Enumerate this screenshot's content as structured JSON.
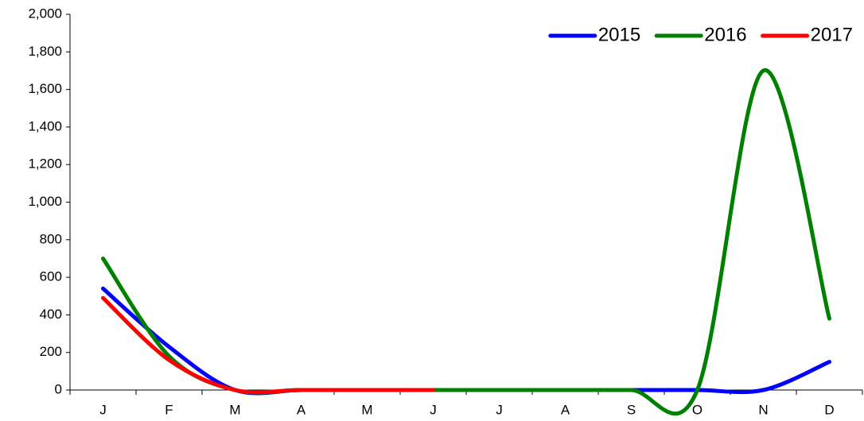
{
  "chart_data": {
    "type": "line",
    "categories": [
      "J",
      "F",
      "M",
      "A",
      "M",
      "J",
      "J",
      "A",
      "S",
      "O",
      "N",
      "D"
    ],
    "series": [
      {
        "name": "2015",
        "color": "#0000ff",
        "values": [
          540,
          230,
          0,
          0,
          0,
          0,
          0,
          0,
          0,
          0,
          0,
          150
        ]
      },
      {
        "name": "2016",
        "color": "#008000",
        "values": [
          700,
          180,
          0,
          0,
          0,
          0,
          0,
          0,
          0,
          0,
          1700,
          380
        ]
      },
      {
        "name": "2017",
        "color": "#ff0000",
        "values": [
          490,
          160,
          0,
          0,
          0,
          0,
          null,
          null,
          null,
          null,
          null,
          null
        ]
      }
    ],
    "ylim": [
      0,
      2000
    ],
    "yticks": [
      0,
      200,
      400,
      600,
      800,
      {
        "value": 1000,
        "label": "1,000"
      },
      {
        "value": 1200,
        "label": "1,200"
      },
      {
        "value": 1400,
        "label": "1,400"
      },
      {
        "value": 1600,
        "label": "1,600"
      },
      {
        "value": 1800,
        "label": "1,800"
      },
      {
        "value": 2000,
        "label": "2,000"
      }
    ],
    "grid": false,
    "legend": "top-right"
  }
}
